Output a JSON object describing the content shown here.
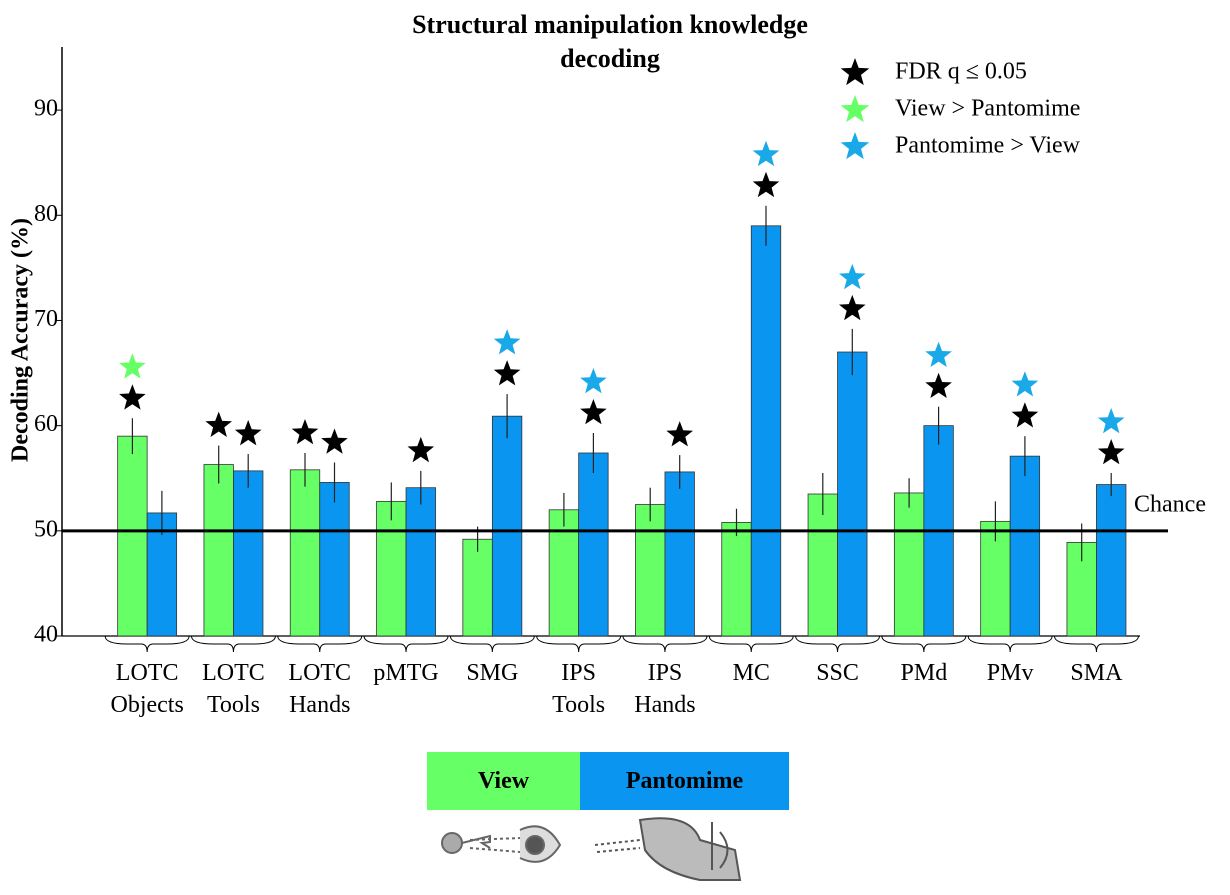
{
  "chart_data": {
    "type": "bar",
    "title": "Structural manipulation knowledge decoding",
    "y_label": "Decoding Accuracy (%)",
    "categories": [
      "LOTC Objects",
      "LOTC Tools",
      "LOTC Hands",
      "pMTG",
      "SMG",
      "IPS Tools",
      "IPS Hands",
      "MC",
      "SSC",
      "PMd",
      "PMv",
      "SMA"
    ],
    "series": [
      {
        "name": "View",
        "color": "#66ff66",
        "values": [
          59.0,
          56.3,
          55.8,
          52.8,
          49.2,
          52.0,
          52.5,
          50.8,
          53.5,
          53.6,
          50.9,
          48.9
        ],
        "errors": [
          1.7,
          1.8,
          1.6,
          1.8,
          1.2,
          1.6,
          1.6,
          1.3,
          2.0,
          1.4,
          1.9,
          1.8
        ],
        "stars": [
          [
            0,
            1
          ],
          [
            0
          ],
          [
            0
          ],
          [],
          [],
          [],
          [],
          [],
          [],
          [],
          [],
          []
        ]
      },
      {
        "name": "Pantomime",
        "color": "#0a96f0",
        "values": [
          51.7,
          55.7,
          54.6,
          54.1,
          60.9,
          57.4,
          55.6,
          79.0,
          67.0,
          60.0,
          57.1,
          54.4
        ],
        "errors": [
          2.1,
          1.6,
          1.9,
          1.6,
          2.1,
          1.9,
          1.6,
          1.9,
          2.2,
          1.8,
          1.9,
          1.1
        ],
        "stars": [
          [],
          [
            0
          ],
          [
            0
          ],
          [
            0
          ],
          [
            0,
            2
          ],
          [
            0,
            2
          ],
          [
            0
          ],
          [
            0,
            2
          ],
          [
            0,
            2
          ],
          [
            0,
            2
          ],
          [
            0,
            2
          ],
          [
            0,
            2
          ]
        ]
      }
    ],
    "star_legend": [
      {
        "label": "FDR q ≤ 0.05",
        "color": "#000000"
      },
      {
        "label": "View > Pantomime",
        "color": "#66ff66"
      },
      {
        "label": "Pantomime > View",
        "color": "#1aa9e8"
      }
    ],
    "chance": {
      "value": 50,
      "label": "Chance"
    },
    "ylim": [
      40,
      96
    ],
    "yticks": [
      40,
      50,
      60,
      70,
      80,
      90
    ]
  }
}
